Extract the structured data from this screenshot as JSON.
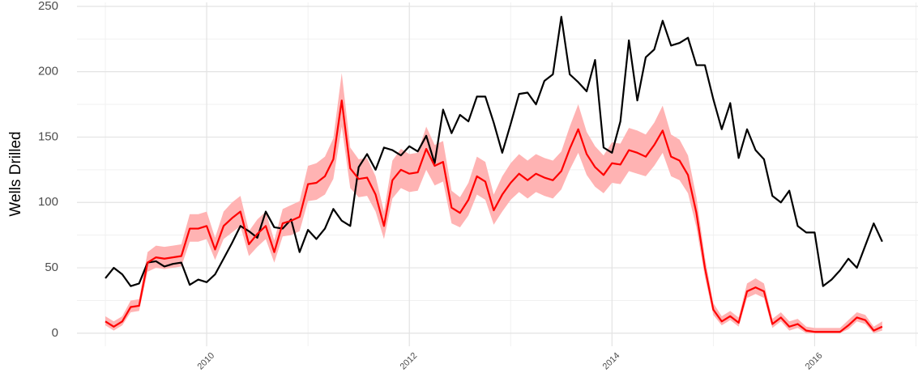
{
  "chart_data": {
    "type": "line",
    "y_label": "Wells Drilled",
    "x": [
      2009,
      2009.083,
      2009.167,
      2009.25,
      2009.333,
      2009.417,
      2009.5,
      2009.583,
      2009.667,
      2009.75,
      2009.833,
      2009.917,
      2010,
      2010.083,
      2010.167,
      2010.25,
      2010.333,
      2010.417,
      2010.5,
      2010.583,
      2010.667,
      2010.75,
      2010.833,
      2010.917,
      2011,
      2011.083,
      2011.167,
      2011.25,
      2011.333,
      2011.417,
      2011.5,
      2011.583,
      2011.667,
      2011.75,
      2011.833,
      2011.917,
      2012,
      2012.083,
      2012.167,
      2012.25,
      2012.333,
      2012.417,
      2012.5,
      2012.583,
      2012.667,
      2012.75,
      2012.833,
      2012.917,
      2013,
      2013.083,
      2013.167,
      2013.25,
      2013.333,
      2013.417,
      2013.5,
      2013.583,
      2013.667,
      2013.75,
      2013.833,
      2013.917,
      2014,
      2014.083,
      2014.167,
      2014.25,
      2014.333,
      2014.417,
      2014.5,
      2014.583,
      2014.667,
      2014.75,
      2014.833,
      2014.917,
      2015,
      2015.083,
      2015.167,
      2015.25,
      2015.333,
      2015.417,
      2015.5,
      2015.583,
      2015.667,
      2015.75,
      2015.833,
      2015.917,
      2016,
      2016.083,
      2016.167,
      2016.25,
      2016.333,
      2016.417,
      2016.5,
      2016.583,
      2016.667
    ],
    "series": [
      {
        "color": "#ffb3b3",
        "band": true,
        "lower": [
          6,
          2,
          6,
          16,
          17,
          47,
          50,
          49,
          50,
          51,
          70,
          70,
          72,
          56,
          72,
          77,
          82,
          59,
          66,
          72,
          54,
          74,
          75,
          78,
          101,
          102,
          106,
          118,
          158,
          111,
          104,
          105,
          93,
          72,
          103,
          111,
          108,
          109,
          125,
          113,
          116,
          84,
          81,
          90,
          106,
          102,
          83,
          93,
          102,
          108,
          103,
          108,
          105,
          103,
          110,
          125,
          138,
          121,
          112,
          107,
          115,
          114,
          124,
          122,
          120,
          128,
          138,
          120,
          117,
          107,
          81,
          43,
          14,
          6,
          10,
          5,
          27,
          30,
          27,
          4,
          9,
          2,
          4,
          0,
          0,
          0,
          0,
          0,
          3,
          9,
          7,
          0,
          2
        ],
        "upper": [
          13,
          9,
          13,
          25,
          26,
          62,
          67,
          66,
          67,
          68,
          91,
          91,
          93,
          73,
          93,
          100,
          105,
          78,
          87,
          93,
          71,
          95,
          98,
          101,
          128,
          130,
          135,
          149,
          199,
          142,
          133,
          134,
          120,
          93,
          132,
          141,
          137,
          138,
          158,
          144,
          147,
          109,
          104,
          115,
          135,
          131,
          106,
          120,
          130,
          137,
          132,
          137,
          134,
          132,
          139,
          158,
          175,
          154,
          143,
          136,
          146,
          145,
          157,
          155,
          152,
          161,
          174,
          152,
          148,
          136,
          104,
          58,
          23,
          13,
          17,
          12,
          38,
          42,
          38,
          11,
          16,
          9,
          11,
          5,
          4,
          4,
          4,
          4,
          10,
          16,
          14,
          5,
          9
        ]
      },
      {
        "color": "#000000",
        "values": [
          42,
          50,
          45,
          36,
          38,
          54,
          55,
          51,
          53,
          54,
          37,
          41,
          39,
          45,
          57,
          69,
          82,
          78,
          73,
          93,
          81,
          80,
          87,
          62,
          79,
          72,
          80,
          95,
          86,
          82,
          127,
          137,
          125,
          142,
          140,
          136,
          143,
          139,
          151,
          130,
          171,
          153,
          167,
          162,
          181,
          181,
          161,
          138,
          160,
          183,
          184,
          175,
          193,
          198,
          242,
          198,
          192,
          185,
          209,
          142,
          138,
          162,
          224,
          178,
          211,
          217,
          239,
          220,
          222,
          226,
          205,
          205,
          179,
          156,
          176,
          134,
          156,
          140,
          133,
          105,
          100,
          109,
          82,
          77,
          77,
          36,
          41,
          48,
          57,
          50,
          67,
          84,
          70
        ]
      },
      {
        "color": "#ff0000",
        "values": [
          9,
          5,
          9,
          20,
          21,
          54,
          58,
          57,
          58,
          59,
          80,
          80,
          82,
          64,
          82,
          88,
          93,
          68,
          76,
          82,
          62,
          84,
          86,
          89,
          114,
          115,
          120,
          133,
          178,
          126,
          118,
          119,
          106,
          82,
          117,
          125,
          122,
          123,
          141,
          128,
          131,
          96,
          92,
          102,
          120,
          116,
          94,
          106,
          115,
          122,
          117,
          122,
          119,
          117,
          124,
          141,
          156,
          137,
          127,
          121,
          130,
          129,
          140,
          138,
          135,
          144,
          155,
          135,
          132,
          121,
          92,
          50,
          18,
          9,
          13,
          8,
          32,
          35,
          32,
          7,
          12,
          5,
          7,
          2,
          1,
          1,
          1,
          1,
          6,
          12,
          10,
          2,
          5
        ]
      }
    ],
    "xlim": [
      2008.72,
      2017.02
    ],
    "xticks": [
      2010,
      2012,
      2014,
      2016
    ],
    "x_minor_grid": [
      2009,
      2011,
      2013,
      2015,
      2017
    ],
    "ylim": [
      -10,
      253
    ],
    "yticks": [
      0,
      50,
      100,
      150,
      200,
      250
    ],
    "y_minor_grid": [
      25,
      75,
      125,
      175,
      225
    ],
    "grid": true
  }
}
